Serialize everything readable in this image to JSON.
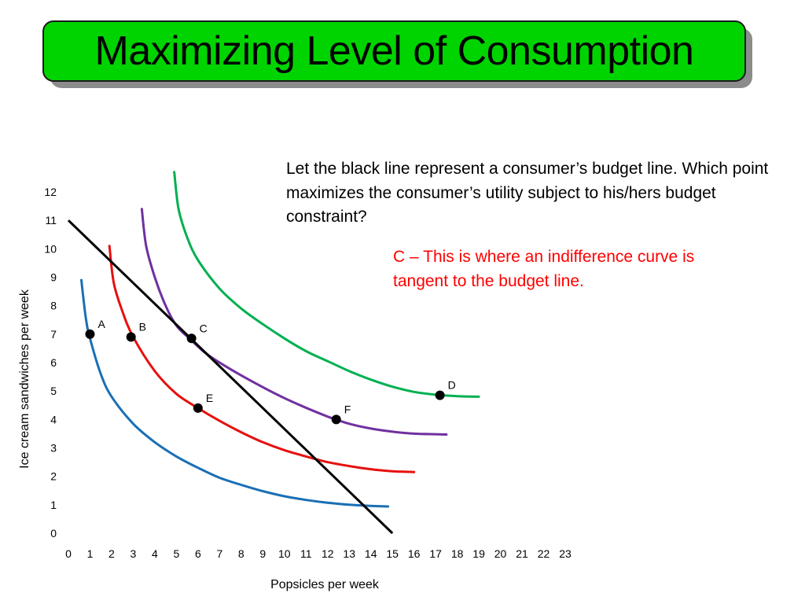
{
  "slide": {
    "title": "Maximizing Level of Consumption",
    "question": "Let the black line represent a consumer’s budget line. Which point maximizes the consumer’s utility subject to his/hers budget constraint?",
    "answer": "C – This is where an indifference curve is tangent to the budget line.",
    "title_color": "#00d400",
    "answer_color": "#ff0000"
  },
  "chart_data": {
    "type": "line",
    "xlabel": "Popsicles per week",
    "ylabel": "Ice cream sandwiches per week",
    "xlim": [
      0,
      23
    ],
    "ylim": [
      0,
      12
    ],
    "x_ticks": [
      0,
      1,
      2,
      3,
      4,
      5,
      6,
      7,
      8,
      9,
      10,
      11,
      12,
      13,
      14,
      15,
      16,
      17,
      18,
      19,
      20,
      21,
      22,
      23
    ],
    "y_ticks": [
      0,
      1,
      2,
      3,
      4,
      5,
      6,
      7,
      8,
      9,
      10,
      11,
      12
    ],
    "budget_line": {
      "color": "#000000",
      "points": [
        [
          0,
          11
        ],
        [
          15,
          0
        ]
      ]
    },
    "curves": [
      {
        "color": "#1a6fb5",
        "points": [
          [
            0.6,
            8.9
          ],
          [
            0.8,
            7.6
          ],
          [
            1,
            6.85
          ],
          [
            1.5,
            5.6
          ],
          [
            2,
            4.8
          ],
          [
            3,
            3.85
          ],
          [
            4,
            3.2
          ],
          [
            5,
            2.7
          ],
          [
            6,
            2.3
          ],
          [
            7,
            1.95
          ],
          [
            8,
            1.7
          ],
          [
            9,
            1.48
          ],
          [
            10,
            1.3
          ],
          [
            11,
            1.17
          ],
          [
            12,
            1.07
          ],
          [
            13,
            1.0
          ],
          [
            14,
            0.96
          ],
          [
            14.8,
            0.94
          ]
        ]
      },
      {
        "color": "#e6100e",
        "points": [
          [
            1.9,
            10.1
          ],
          [
            2.1,
            8.8
          ],
          [
            2.5,
            7.8
          ],
          [
            3,
            6.9
          ],
          [
            4,
            5.7
          ],
          [
            5,
            4.9
          ],
          [
            6,
            4.4
          ],
          [
            7,
            3.95
          ],
          [
            8,
            3.55
          ],
          [
            9,
            3.2
          ],
          [
            10,
            2.92
          ],
          [
            11,
            2.7
          ],
          [
            12,
            2.5
          ],
          [
            13,
            2.36
          ],
          [
            14,
            2.25
          ],
          [
            15,
            2.18
          ],
          [
            16,
            2.15
          ]
        ]
      },
      {
        "color": "#7030a0",
        "points": [
          [
            3.4,
            11.4
          ],
          [
            3.6,
            10.1
          ],
          [
            4,
            9.0
          ],
          [
            4.5,
            8.0
          ],
          [
            5,
            7.3
          ],
          [
            5.6,
            6.85
          ],
          [
            6.5,
            6.25
          ],
          [
            8,
            5.55
          ],
          [
            10,
            4.75
          ],
          [
            12,
            4.1
          ],
          [
            13,
            3.85
          ],
          [
            14,
            3.68
          ],
          [
            15,
            3.57
          ],
          [
            16,
            3.5
          ],
          [
            17.5,
            3.47
          ]
        ]
      },
      {
        "color": "#00b050",
        "points": [
          [
            4.9,
            12.7
          ],
          [
            5.1,
            11.4
          ],
          [
            5.5,
            10.4
          ],
          [
            6,
            9.6
          ],
          [
            7,
            8.6
          ],
          [
            8,
            7.9
          ],
          [
            9,
            7.35
          ],
          [
            10,
            6.85
          ],
          [
            11,
            6.4
          ],
          [
            12,
            6.05
          ],
          [
            13,
            5.7
          ],
          [
            14,
            5.4
          ],
          [
            15,
            5.15
          ],
          [
            16,
            4.97
          ],
          [
            17,
            4.87
          ],
          [
            18,
            4.82
          ],
          [
            19,
            4.8
          ]
        ]
      }
    ],
    "points": [
      {
        "label": "A",
        "x": 1,
        "y": 7.0
      },
      {
        "label": "B",
        "x": 2.9,
        "y": 6.9
      },
      {
        "label": "C",
        "x": 5.7,
        "y": 6.85
      },
      {
        "label": "D",
        "x": 17.2,
        "y": 4.85
      },
      {
        "label": "E",
        "x": 6.0,
        "y": 4.4
      },
      {
        "label": "F",
        "x": 12.4,
        "y": 4.0
      }
    ]
  }
}
